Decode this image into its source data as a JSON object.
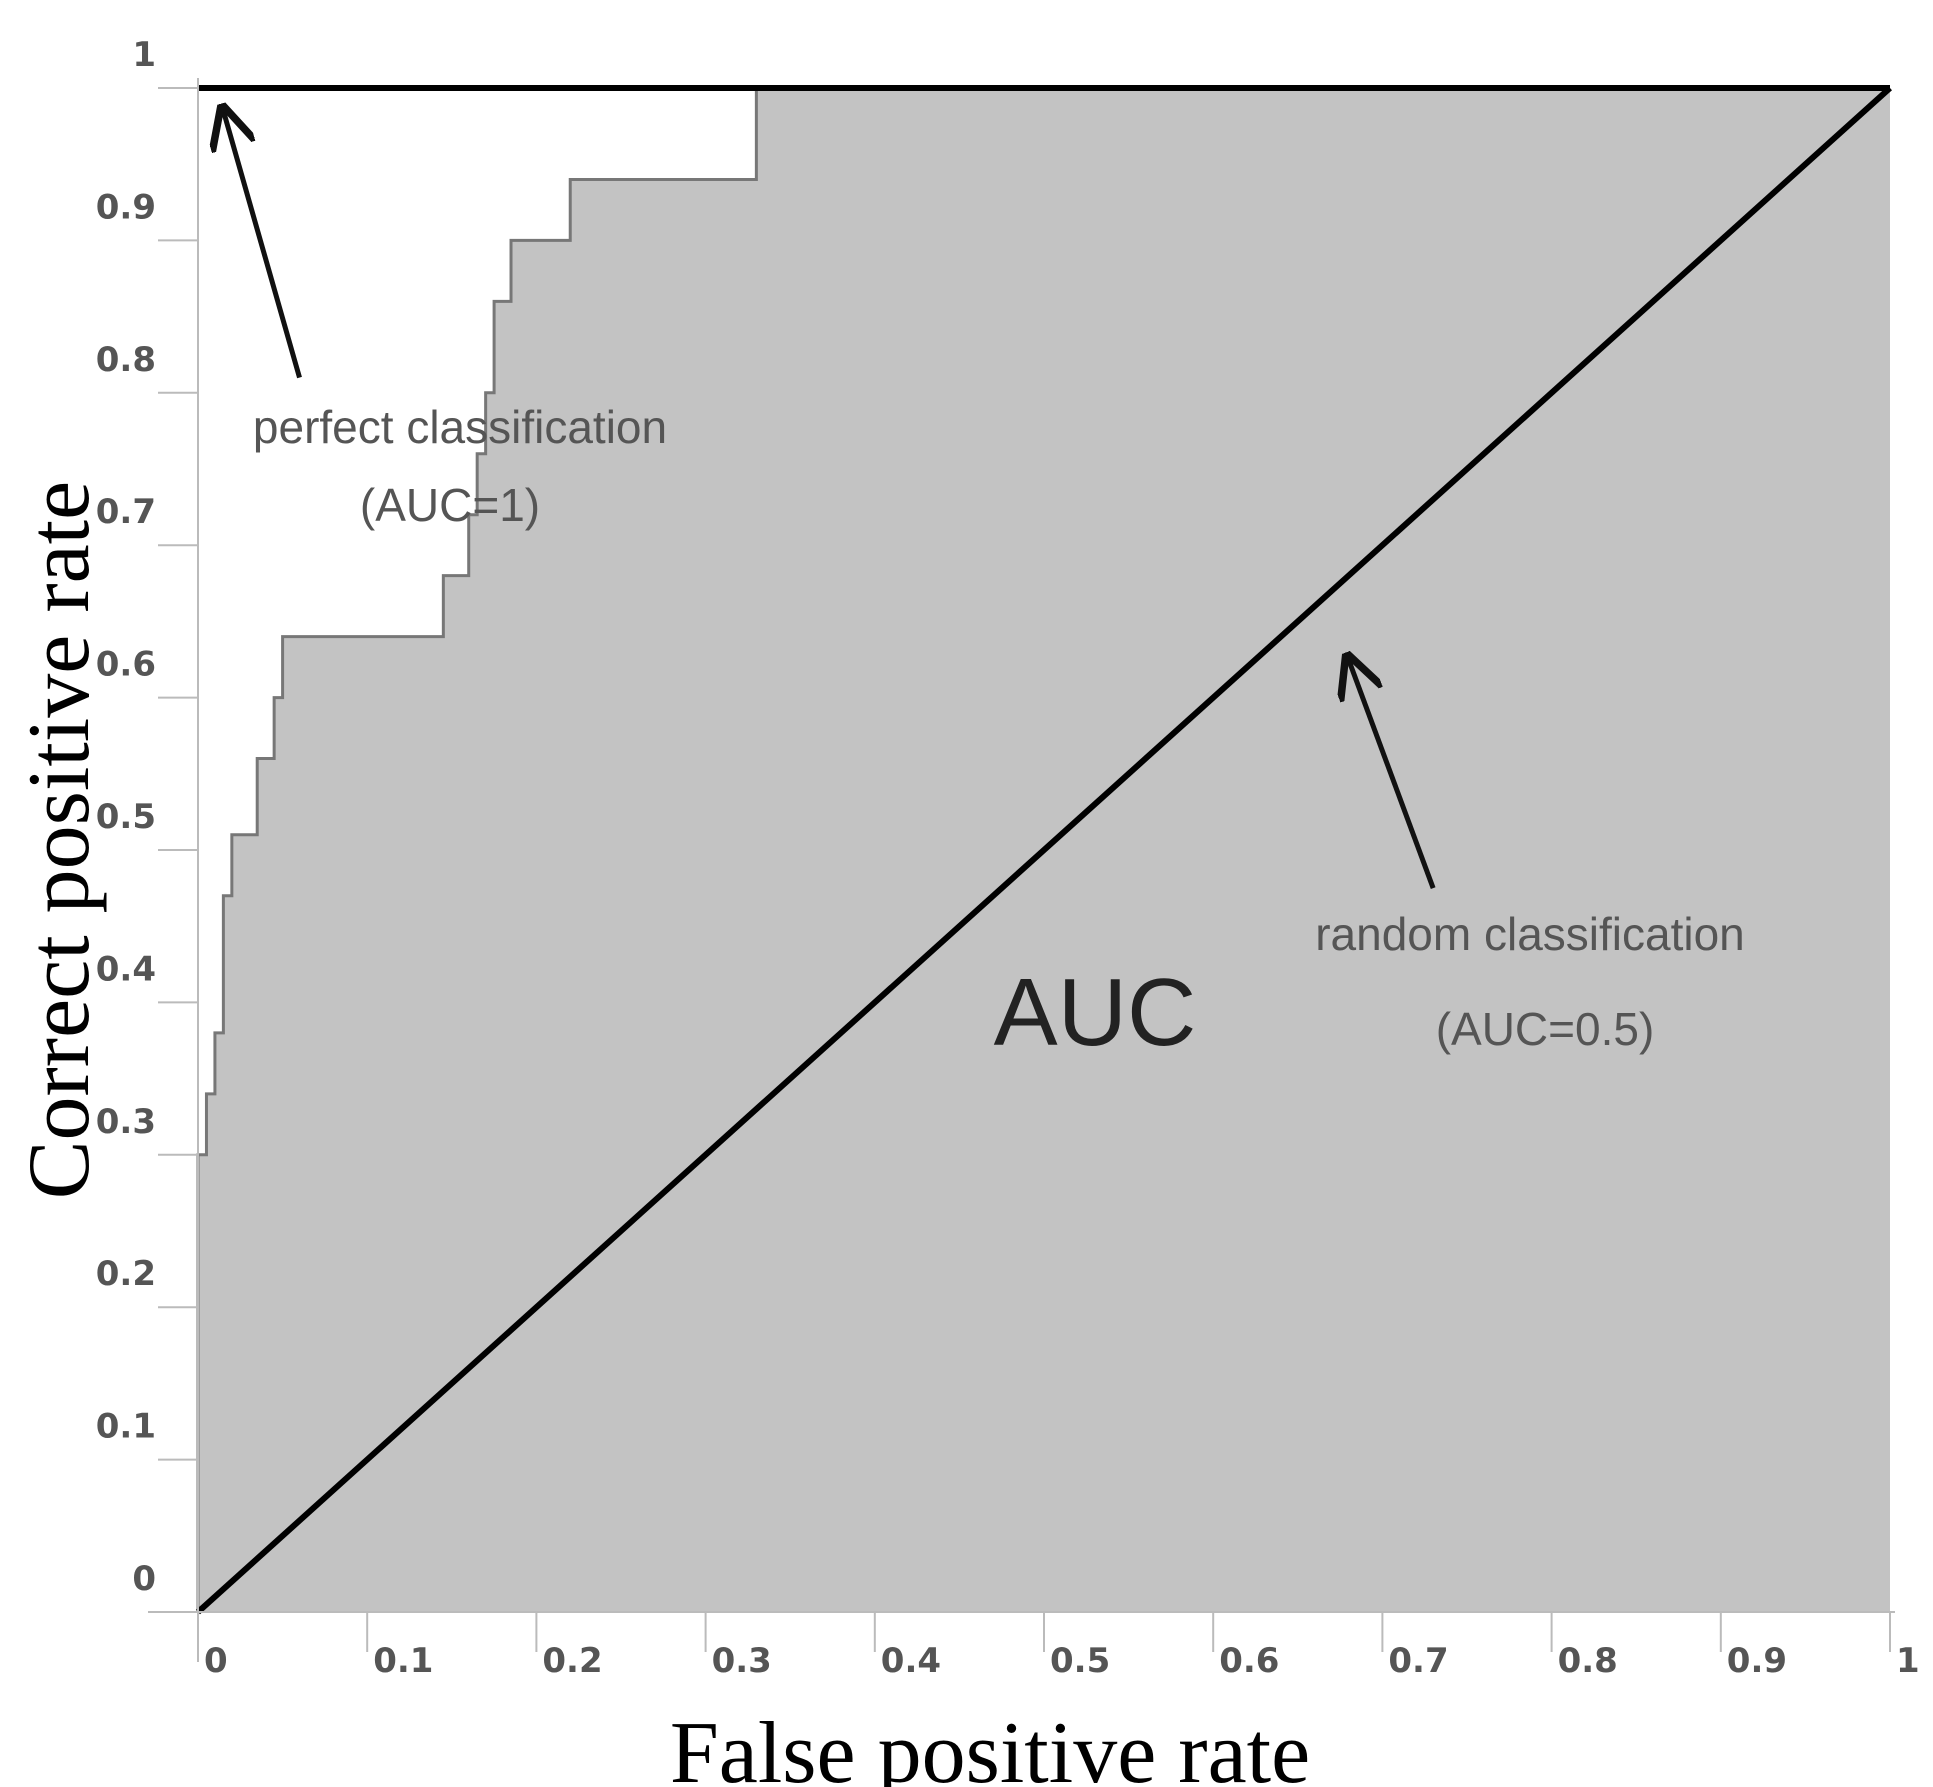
{
  "chart_data": {
    "type": "area",
    "title": "",
    "xlabel": "False positive rate",
    "ylabel": "Correct positive rate",
    "xlim": [
      0,
      1
    ],
    "ylim": [
      0,
      1
    ],
    "x_ticks": [
      "0",
      "0.1",
      "0.2",
      "0.3",
      "0.4",
      "0.5",
      "0.6",
      "0.7",
      "0.8",
      "0.9",
      "1"
    ],
    "y_ticks": [
      "0",
      "0.1",
      "0.2",
      "0.3",
      "0.4",
      "0.5",
      "0.6",
      "0.7",
      "0.8",
      "0.9",
      "1"
    ],
    "grid": false,
    "series": [
      {
        "style": "step",
        "x": [
          0,
          0,
          0.005,
          0.005,
          0.01,
          0.01,
          0.015,
          0.015,
          0.02,
          0.02,
          0.035,
          0.035,
          0.045,
          0.045,
          0.05,
          0.05,
          0.145,
          0.145,
          0.16,
          0.16,
          0.165,
          0.165,
          0.17,
          0.17,
          0.175,
          0.175,
          0.185,
          0.185,
          0.22,
          0.22,
          0.33,
          0.33,
          0.67,
          0.67,
          1
        ],
        "y": [
          0,
          0.3,
          0.3,
          0.34,
          0.34,
          0.38,
          0.38,
          0.47,
          0.47,
          0.51,
          0.51,
          0.56,
          0.56,
          0.6,
          0.6,
          0.64,
          0.64,
          0.68,
          0.68,
          0.72,
          0.72,
          0.76,
          0.76,
          0.8,
          0.8,
          0.86,
          0.86,
          0.9,
          0.9,
          0.94,
          0.94,
          1,
          1,
          1,
          1
        ],
        "fill": "#c3c3c3"
      },
      {
        "style": "line",
        "x": [
          0,
          1
        ],
        "y": [
          0,
          1
        ],
        "color": "#000000"
      },
      {
        "style": "line",
        "x": [
          0,
          1
        ],
        "y": [
          1,
          1
        ],
        "color": "#000000"
      }
    ],
    "annotations": [
      {
        "text_line1": "perfect classification",
        "text_line2": "(AUC=1)",
        "arrow_from": [
          0.06,
          0.81
        ],
        "arrow_to": [
          0.015,
          0.985
        ]
      },
      {
        "text_line1": "random classification",
        "text_line2": "(AUC=0.5)",
        "arrow_from": [
          0.73,
          0.475
        ],
        "arrow_to": [
          0.68,
          0.625
        ]
      },
      {
        "text_line1": "AUC"
      }
    ]
  }
}
